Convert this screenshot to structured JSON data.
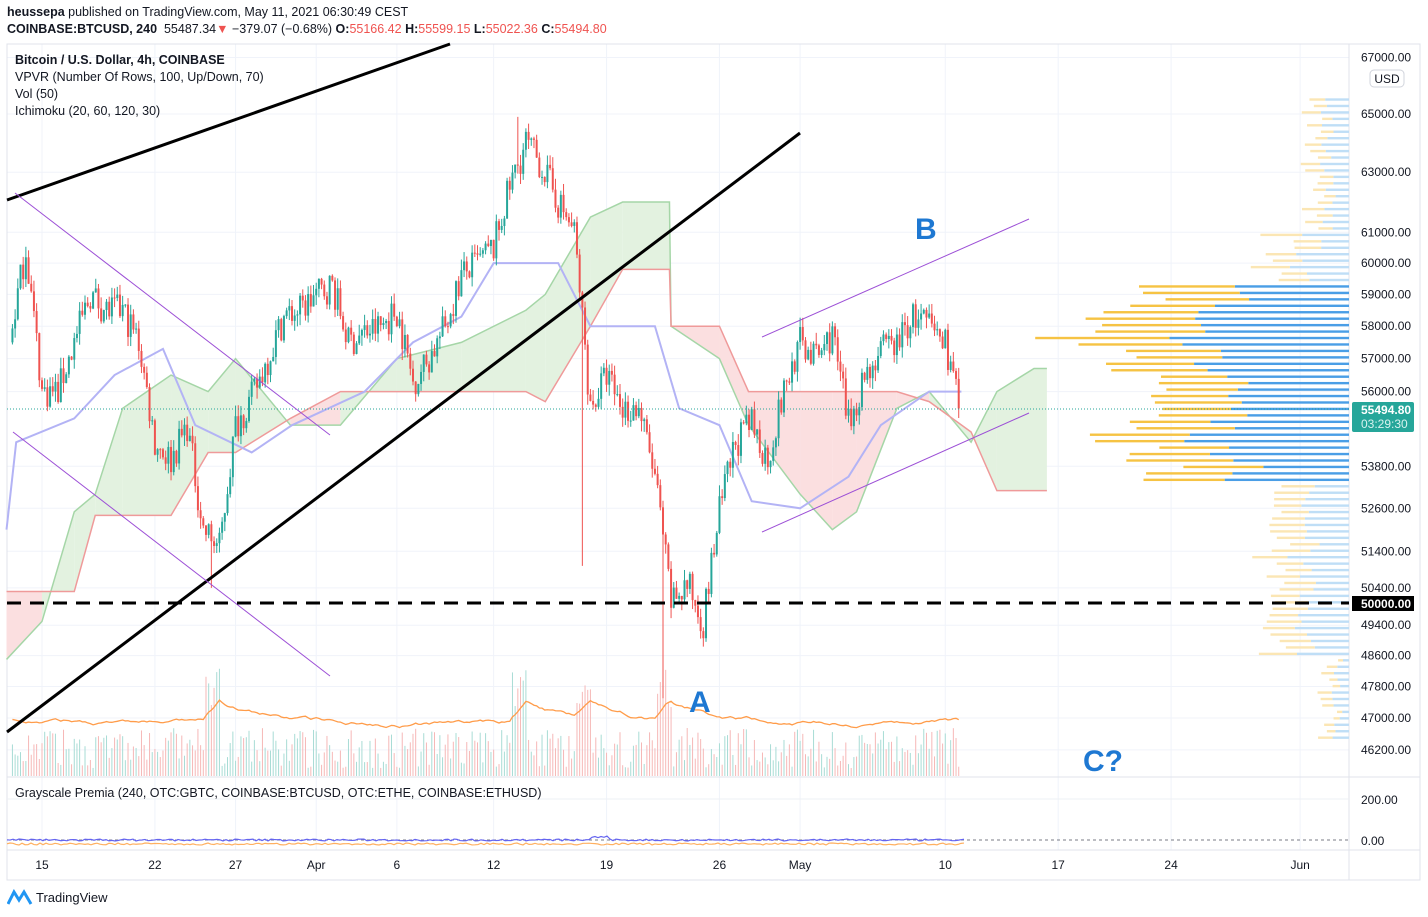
{
  "header": {
    "author": "heussepa",
    "published_text": "published on TradingView.com, May 11, 2021 06:30:49 CEST",
    "symbol": "COINBASE:BTCUSD, 240",
    "last": "55487.34",
    "change": "−379.07 (−0.68%)",
    "o_label": "O:",
    "o": "55166.42",
    "h_label": "H:",
    "h": "55599.15",
    "l_label": "L:",
    "l": "55022.36",
    "c_label": "C:",
    "c": "55494.80",
    "down_arrow": "▼"
  },
  "legend": {
    "title": "Bitcoin / U.S. Dollar, 4h, COINBASE",
    "vpvr": "VPVR (Number Of Rows, 100, Up/Down, 70)",
    "vol": "Vol (50)",
    "ichimoku": "Ichimoku (20, 60, 120, 30)",
    "lower_pane": "Grayscale Premia (240, OTC:GBTC, COINBASE:BTCUSD, OTC:ETHE, COINBASE:ETHUSD)"
  },
  "annotations": {
    "a": "A",
    "b": "B",
    "c": "C?"
  },
  "price_tag": {
    "price": "55494.80",
    "countdown": "03:29:30",
    "level_50000": "50000.00",
    "currency": "USD"
  },
  "footer": {
    "brand": "TradingView"
  },
  "colors": {
    "up": "#26a69a",
    "down": "#ef5350",
    "annotation": "#1e78d2",
    "channel": "#9c4fd6",
    "kijun": "#b3b3f5",
    "cloud_up": "#e3f2e0",
    "cloud_down": "#fbdfe0"
  },
  "chart_data": {
    "type": "candlestick",
    "scale": "log",
    "interval": "4h",
    "ylim": [
      46000,
      67000
    ],
    "y_ticks": [
      67000,
      65000,
      63000,
      61000,
      60000,
      59000,
      58000,
      57000,
      56000,
      53800,
      52600,
      51400,
      50400,
      49400,
      48600,
      47800,
      47000,
      46200
    ],
    "y_tick_labels": [
      "67000.00",
      "65000.00",
      "63000.00",
      "61000.00",
      "60000.00",
      "59000.00",
      "58000.00",
      "57000.00",
      "56000.00",
      "53800.00",
      "52600.00",
      "51400.00",
      "50400.00",
      "49400.00",
      "48600.00",
      "47800.00",
      "47000.00",
      "46200.00"
    ],
    "x_ticks": [
      {
        "label": "15",
        "day": 0
      },
      {
        "label": "22",
        "day": 7
      },
      {
        "label": "27",
        "day": 12
      },
      {
        "label": "Apr",
        "day": 17
      },
      {
        "label": "6",
        "day": 22
      },
      {
        "label": "12",
        "day": 28
      },
      {
        "label": "19",
        "day": 35
      },
      {
        "label": "26",
        "day": 42
      },
      {
        "label": "May",
        "day": 47
      },
      {
        "label": "10",
        "day": 56
      },
      {
        "label": "17",
        "day": 63
      },
      {
        "label": "24",
        "day": 70
      },
      {
        "label": "Jun",
        "day": 78
      }
    ],
    "daily_close": [
      [
        "Mar 13",
        57500
      ],
      [
        "Mar 14",
        60500
      ],
      [
        "Mar 15",
        56000
      ],
      [
        "Mar 16",
        56000
      ],
      [
        "Mar 17",
        57500
      ],
      [
        "Mar 18",
        59000
      ],
      [
        "Mar 19",
        58500
      ],
      [
        "Mar 20",
        58500
      ],
      [
        "Mar 21",
        57500
      ],
      [
        "Mar 22",
        54500
      ],
      [
        "Mar 23",
        54000
      ],
      [
        "Mar 24",
        55000
      ],
      [
        "Mar 25",
        52000
      ],
      [
        "Mar 26",
        51500
      ],
      [
        "Mar 27",
        55000
      ],
      [
        "Mar 28",
        55800
      ],
      [
        "Mar 29",
        57000
      ],
      [
        "Mar 30",
        58300
      ],
      [
        "Mar 31",
        58500
      ],
      [
        "Apr 1",
        59000
      ],
      [
        "Apr 2",
        59300
      ],
      [
        "Apr 3",
        57500
      ],
      [
        "Apr 4",
        57800
      ],
      [
        "Apr 5",
        58000
      ],
      [
        "Apr 6",
        58500
      ],
      [
        "Apr 7",
        56300
      ],
      [
        "Apr 8",
        57000
      ],
      [
        "Apr 9",
        58000
      ],
      [
        "Apr 10",
        59600
      ],
      [
        "Apr 11",
        60000
      ],
      [
        "Apr 12",
        60500
      ],
      [
        "Apr 13",
        62500
      ],
      [
        "Apr 14",
        64000
      ],
      [
        "Apr 15",
        63200
      ],
      [
        "Apr 16",
        62000
      ],
      [
        "Apr 17",
        61000
      ],
      [
        "Apr 18",
        55500
      ],
      [
        "Apr 19",
        56500
      ],
      [
        "Apr 20",
        55500
      ],
      [
        "Apr 21",
        55500
      ],
      [
        "Apr 22",
        53500
      ],
      [
        "Apr 23",
        50000
      ],
      [
        "Apr 24",
        50500
      ],
      [
        "Apr 25",
        49500
      ],
      [
        "Apr 26",
        52500
      ],
      [
        "Apr 27",
        54500
      ],
      [
        "Apr 28",
        55000
      ],
      [
        "Apr 29",
        54000
      ],
      [
        "Apr 30",
        56000
      ],
      [
        "May 1",
        57500
      ],
      [
        "May 2",
        57000
      ],
      [
        "May 3",
        57800
      ],
      [
        "May 4",
        55000
      ],
      [
        "May 5",
        56500
      ],
      [
        "May 6",
        57200
      ],
      [
        "May 7",
        57500
      ],
      [
        "May 8",
        58300
      ],
      [
        "May 9",
        58000
      ],
      [
        "May 10",
        57500
      ],
      [
        "May 11",
        55495
      ]
    ],
    "extremes": [
      [
        "Mar 26",
        "low",
        50400
      ],
      [
        "Apr 14",
        "high",
        64900
      ],
      [
        "Apr 18",
        "low",
        51000
      ],
      [
        "Apr 23",
        "low",
        47500
      ]
    ],
    "ichimoku_cloud": [
      [
        -2.2,
        48500,
        50300
      ],
      [
        0,
        49500,
        50300
      ],
      [
        2,
        52500,
        50300
      ],
      [
        3.3,
        53000,
        52400
      ],
      [
        5,
        55500,
        52400
      ],
      [
        8,
        56500,
        52400
      ],
      [
        10.3,
        56000,
        54200
      ],
      [
        12,
        57000,
        54200
      ],
      [
        15.4,
        55000,
        55200
      ],
      [
        18.5,
        55000,
        56000
      ],
      [
        22,
        57000,
        56000
      ],
      [
        26,
        57500,
        56000
      ],
      [
        30,
        58500,
        56000
      ],
      [
        31.2,
        59000,
        55700
      ],
      [
        34,
        61500,
        58000
      ],
      [
        36,
        62000,
        59800
      ],
      [
        38.9,
        62000,
        59800
      ],
      [
        39,
        58000,
        58000
      ],
      [
        42,
        57000,
        58000
      ],
      [
        43.8,
        55000,
        56000
      ],
      [
        47,
        53000,
        56000
      ],
      [
        49,
        52000,
        56000
      ],
      [
        50.5,
        52500,
        56000
      ],
      [
        53,
        55500,
        56000
      ],
      [
        55,
        56000,
        55700
      ],
      [
        57.6,
        54500,
        54800
      ],
      [
        59.2,
        56000,
        53100
      ],
      [
        61.5,
        56700,
        53100
      ],
      [
        62.3,
        56700,
        53100
      ]
    ],
    "kijun": [
      [
        -2.2,
        52000
      ],
      [
        -1.6,
        54500
      ],
      [
        2,
        55200
      ],
      [
        4.5,
        56500
      ],
      [
        7.5,
        57300
      ],
      [
        9.5,
        55000
      ],
      [
        13,
        54200
      ],
      [
        15.5,
        55000
      ],
      [
        20,
        56000
      ],
      [
        23,
        57500
      ],
      [
        26,
        58300
      ],
      [
        28,
        60000
      ],
      [
        32,
        60000
      ],
      [
        34,
        58000
      ],
      [
        38,
        58000
      ],
      [
        39.5,
        55500
      ],
      [
        42,
        55000
      ],
      [
        44,
        52800
      ],
      [
        47,
        52600
      ],
      [
        50,
        53500
      ],
      [
        52,
        55000
      ],
      [
        55,
        56000
      ],
      [
        57,
        56000
      ]
    ],
    "horizontal_level": 50000,
    "lower_pane": {
      "y_ticks": [
        "200.00",
        "0.00"
      ]
    }
  }
}
